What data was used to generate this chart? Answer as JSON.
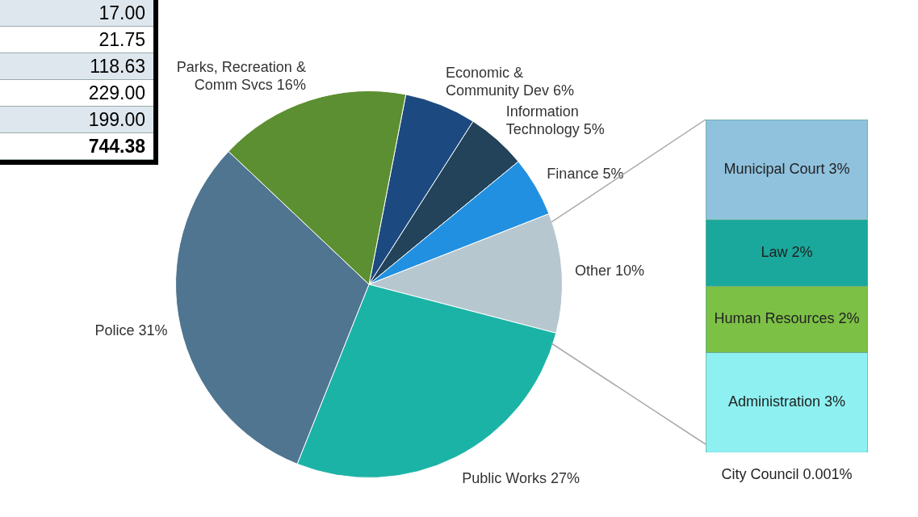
{
  "chart_data": [
    {
      "type": "other",
      "annotations": [
        "17.00",
        "21.75",
        "118.63",
        "229.00",
        "199.00",
        "744.38"
      ]
    },
    {
      "type": "pie",
      "categories": [
        "Economic & Community Dev",
        "Information Technology",
        "Finance",
        "Other",
        "Public Works",
        "Police",
        "Parks, Recreation & Comm Svcs"
      ],
      "values": [
        6,
        5,
        5,
        10,
        27,
        31,
        16
      ],
      "colors": [
        "#1c4a80",
        "#22435a",
        "#2290e0",
        "#b7c7cf",
        "#1bb3a6",
        "#4f7590",
        "#5c8f31"
      ],
      "value_labels": [
        "6%",
        "5%",
        "5%",
        "10%",
        "27%",
        "31%",
        "16%"
      ]
    },
    {
      "type": "bar",
      "stacked": true,
      "categories": [
        null
      ],
      "series": [
        {
          "name": "City Council",
          "color": "#2a9c96",
          "values": [
            0.001
          ],
          "value_labels": [
            "0.001%"
          ]
        },
        {
          "name": "Administration",
          "color": "#8ef0f0",
          "values": [
            3
          ],
          "value_labels": [
            "3%"
          ]
        },
        {
          "name": "Human Resources",
          "color": "#7cc045",
          "values": [
            2
          ],
          "value_labels": [
            "2%"
          ]
        },
        {
          "name": "Law",
          "color": "#1aa89c",
          "values": [
            2
          ],
          "value_labels": [
            "2%"
          ]
        },
        {
          "name": "Municipal Court",
          "color": "#90c2de",
          "values": [
            3
          ],
          "value_labels": [
            "3%"
          ]
        }
      ]
    }
  ]
}
